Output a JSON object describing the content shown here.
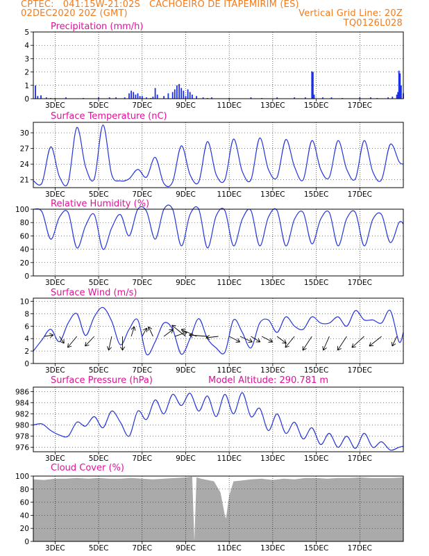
{
  "header": {
    "line1": "CPTEC:   041:15W-21:02S   CACHOEIRO DE ITAPEMIRIM (ES)",
    "line2_left": "02DEC2020 20Z (GMT)",
    "line2_right": "Vertical Grid Line: 20Z",
    "line3_right": "TQ0126L028"
  },
  "colors": {
    "header": "#f07b1e",
    "title": "#e0109a",
    "line": "#2233dd",
    "bar": "#1a2ee6",
    "cloud": "#aaaaaa",
    "arrow": "#000000"
  },
  "days": [
    "3DEC",
    "5DEC",
    "7DEC",
    "9DEC",
    "11DEC",
    "13DEC",
    "15DEC",
    "17DEC"
  ],
  "chart_data": [
    {
      "type": "bar",
      "title": "Precipitation (mm/h)",
      "ylim": [
        0,
        5
      ],
      "yticks": [
        0,
        1,
        2,
        3,
        4,
        5
      ],
      "x": [
        0.1,
        0.2,
        0.35,
        0.6,
        0.8,
        1.0,
        1.5,
        2.3,
        3.0,
        3.5,
        3.8,
        4.2,
        4.4,
        4.5,
        4.6,
        4.7,
        4.8,
        4.9,
        5.0,
        5.2,
        5.4,
        5.5,
        5.6,
        5.7,
        6.0,
        6.2,
        6.4,
        6.5,
        6.6,
        6.7,
        6.8,
        6.9,
        7.0,
        7.1,
        7.2,
        7.3,
        7.5,
        7.8,
        8.0,
        8.2,
        9.0,
        10.0,
        10.5,
        11.2,
        12.0,
        12.5,
        12.8,
        12.85,
        12.9,
        13.3,
        13.7,
        14.2,
        15.0,
        15.5,
        15.8,
        16.3,
        16.5,
        16.7,
        16.75,
        16.8,
        16.85,
        16.9,
        17.0
      ],
      "values": [
        1.0,
        0.2,
        0.25,
        0.1,
        0.05,
        0.05,
        0.1,
        0.05,
        0.1,
        0.1,
        0.1,
        0.1,
        0.4,
        0.6,
        0.5,
        0.3,
        0.4,
        0.2,
        0.2,
        0.1,
        0.05,
        0.15,
        0.8,
        0.3,
        0.2,
        0.4,
        0.5,
        0.7,
        1.0,
        1.1,
        0.8,
        0.6,
        0.2,
        0.7,
        0.5,
        0.3,
        0.2,
        0.1,
        0.05,
        0.1,
        0.05,
        0.1,
        0.05,
        0.1,
        0.1,
        0.1,
        2.05,
        2.0,
        0.3,
        0.1,
        0.1,
        0.05,
        0.1,
        0.1,
        0.05,
        0.1,
        0.15,
        0.3,
        0.5,
        2.1,
        1.9,
        1.0,
        0.4
      ]
    },
    {
      "type": "line",
      "title": "Surface Temperature (nC)",
      "ylim": [
        19.5,
        32
      ],
      "yticks": [
        21,
        24,
        27,
        30
      ],
      "x": [
        0,
        0.4,
        0.8,
        1.2,
        1.6,
        2.0,
        2.4,
        2.8,
        3.2,
        3.6,
        4.0,
        4.4,
        4.8,
        5.2,
        5.6,
        6.0,
        6.4,
        6.8,
        7.2,
        7.6,
        8.0,
        8.4,
        8.8,
        9.2,
        9.6,
        10.0,
        10.4,
        10.8,
        11.2,
        11.6,
        12.0,
        12.4,
        12.8,
        13.2,
        13.6,
        14.0,
        14.4,
        14.8,
        15.2,
        15.6,
        16.0,
        16.4,
        16.8,
        17.0
      ],
      "values": [
        20.8,
        20.4,
        27.3,
        21.6,
        20.5,
        31.0,
        23.5,
        21.2,
        31.5,
        22.0,
        20.8,
        21.2,
        23.0,
        21.5,
        25.3,
        20.3,
        20.6,
        27.5,
        22.0,
        20.6,
        28.3,
        22.0,
        21.0,
        28.8,
        22.6,
        21.0,
        29.0,
        23.0,
        21.5,
        28.7,
        23.5,
        21.0,
        28.5,
        23.0,
        21.5,
        28.5,
        23.0,
        21.2,
        28.5,
        22.5,
        21.0,
        27.8,
        24.5,
        24.0
      ]
    },
    {
      "type": "line",
      "title": "Relative Humidity (%)",
      "ylim": [
        0,
        100
      ],
      "yticks": [
        0,
        20,
        40,
        60,
        80,
        100
      ],
      "x": [
        0,
        0.4,
        0.8,
        1.2,
        1.6,
        2.0,
        2.4,
        2.8,
        3.2,
        3.6,
        4.0,
        4.4,
        4.8,
        5.2,
        5.6,
        6.0,
        6.4,
        6.8,
        7.2,
        7.6,
        8.0,
        8.4,
        8.8,
        9.2,
        9.6,
        10.0,
        10.4,
        10.8,
        11.2,
        11.6,
        12.0,
        12.4,
        12.8,
        13.2,
        13.6,
        14.0,
        14.4,
        14.8,
        15.2,
        15.6,
        16.0,
        16.4,
        16.8,
        17.0
      ],
      "values": [
        100,
        96,
        55,
        88,
        95,
        42,
        75,
        92,
        40,
        72,
        92,
        60,
        100,
        97,
        55,
        100,
        100,
        45,
        92,
        100,
        42,
        90,
        98,
        45,
        85,
        98,
        45,
        88,
        98,
        45,
        85,
        95,
        48,
        85,
        95,
        45,
        86,
        95,
        45,
        85,
        92,
        50,
        80,
        78
      ]
    },
    {
      "type": "line",
      "title": "Surface Wind (m/s)",
      "ylim": [
        0,
        10.5
      ],
      "yticks": [
        0,
        2,
        4,
        6,
        8,
        10
      ],
      "x": [
        0,
        0.4,
        0.8,
        1.2,
        1.6,
        2.0,
        2.4,
        2.8,
        3.2,
        3.6,
        4.0,
        4.4,
        4.8,
        5.2,
        5.6,
        6.0,
        6.4,
        6.8,
        7.2,
        7.6,
        8.0,
        8.4,
        8.8,
        9.2,
        9.6,
        10.0,
        10.4,
        10.8,
        11.2,
        11.6,
        12.0,
        12.4,
        12.8,
        13.2,
        13.6,
        14.0,
        14.4,
        14.8,
        15.2,
        15.6,
        16.0,
        16.4,
        16.8,
        17.0
      ],
      "values": [
        2.0,
        3.8,
        5.5,
        3.5,
        6.5,
        8.0,
        4.5,
        7.5,
        9.0,
        6.8,
        3.0,
        5.5,
        7.0,
        1.5,
        3.5,
        6.5,
        5.5,
        1.5,
        4.0,
        7.2,
        4.0,
        2.5,
        1.8,
        7.0,
        5.0,
        2.5,
        6.5,
        7.0,
        5.0,
        7.5,
        6.0,
        5.5,
        7.5,
        6.5,
        6.5,
        7.5,
        6.0,
        8.5,
        7.0,
        7.0,
        6.5,
        8.5,
        3.5,
        5.0
      ],
      "wind_vectors": {
        "x": [
          0.5,
          1.2,
          2.0,
          2.8,
          3.6,
          4.1,
          4.5,
          5.0,
          5.5,
          6.0,
          6.5,
          7.0,
          7.5,
          8.0,
          8.5,
          9.0,
          9.5,
          10.0,
          10.5,
          11.2,
          12.0,
          12.8,
          13.6,
          14.4,
          15.2,
          16.0,
          16.7
        ],
        "dx": [
          0.6,
          0.3,
          -0.6,
          -0.6,
          -0.2,
          0.0,
          0.2,
          0.3,
          -0.3,
          0.6,
          0.8,
          -0.9,
          -1.0,
          -1.2,
          -0.8,
          0.7,
          0.8,
          0.6,
          0.7,
          0.6,
          -0.6,
          -0.6,
          -0.4,
          -0.6,
          -0.8,
          -0.8,
          -0.3
        ],
        "dy": [
          -0.1,
          0.5,
          0.8,
          0.7,
          1.0,
          1.0,
          -0.7,
          -0.6,
          -0.7,
          -0.5,
          -0.3,
          -0.8,
          -0.5,
          -0.1,
          0.1,
          0.4,
          0.4,
          0.4,
          0.4,
          0.5,
          0.8,
          1.0,
          1.0,
          1.0,
          0.8,
          0.7,
          0.7
        ]
      }
    },
    {
      "type": "line",
      "title": "Surface Pressure (hPa)",
      "annotation": "Model Altitude: 290.781 m",
      "ylim": [
        975.2,
        986.8
      ],
      "yticks": [
        976,
        978,
        980,
        982,
        984,
        986
      ],
      "x": [
        0,
        0.4,
        0.8,
        1.2,
        1.6,
        2.0,
        2.4,
        2.8,
        3.2,
        3.6,
        4.0,
        4.4,
        4.8,
        5.2,
        5.6,
        6.0,
        6.4,
        6.8,
        7.2,
        7.6,
        8.0,
        8.4,
        8.8,
        9.2,
        9.6,
        10.0,
        10.4,
        10.8,
        11.2,
        11.6,
        12.0,
        12.4,
        12.8,
        13.2,
        13.6,
        14.0,
        14.4,
        14.8,
        15.2,
        15.6,
        16.0,
        16.4,
        16.8,
        17.0
      ],
      "values": [
        980.0,
        980.2,
        979.0,
        978.2,
        978.0,
        980.5,
        979.8,
        981.5,
        979.5,
        982.5,
        980.5,
        978.0,
        982.5,
        981.0,
        984.5,
        982.0,
        985.5,
        983.5,
        985.7,
        982.5,
        985.2,
        981.5,
        985.5,
        982.0,
        985.8,
        981.5,
        983.0,
        979.0,
        982.0,
        978.5,
        980.5,
        977.5,
        979.5,
        976.5,
        978.5,
        976.0,
        978.0,
        975.8,
        978.5,
        976.0,
        977.0,
        975.5,
        976.0,
        976.2
      ]
    },
    {
      "type": "area",
      "title": "Cloud Cover (%)",
      "ylim": [
        0,
        100
      ],
      "yticks": [
        0,
        20,
        40,
        60,
        80,
        100
      ],
      "x": [
        0,
        0.5,
        1.0,
        1.5,
        2.0,
        2.5,
        3.0,
        3.5,
        4.0,
        4.5,
        5.0,
        5.5,
        6.0,
        6.5,
        7.0,
        7.3,
        7.4,
        7.5,
        7.7,
        8.0,
        8.3,
        8.6,
        8.8,
        8.85,
        9.0,
        9.2,
        9.5,
        10.0,
        10.5,
        11.0,
        11.5,
        12.0,
        12.5,
        13.0,
        13.5,
        14.0,
        14.5,
        15.0,
        15.5,
        16.0,
        16.5,
        17.0
      ],
      "values": [
        95,
        94,
        96,
        96,
        97,
        96,
        97,
        96,
        96,
        97,
        96,
        95,
        96,
        97,
        98,
        99,
        0,
        98,
        96,
        94,
        92,
        75,
        40,
        35,
        70,
        92,
        93,
        95,
        96,
        94,
        96,
        95,
        97,
        97,
        96,
        97,
        97,
        98,
        97,
        97,
        97,
        98
      ]
    }
  ]
}
